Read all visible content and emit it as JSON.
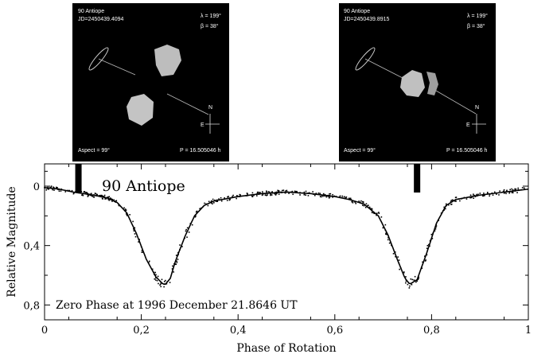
{
  "chart_data": {
    "type": "scatter",
    "title": "90 Antiope",
    "xlabel": "Phase of Rotation",
    "ylabel": "Relative Magnitude",
    "xlim": [
      0,
      1
    ],
    "ylim": [
      0.9,
      -0.15
    ],
    "y_inverted": true,
    "x_ticks": [
      0,
      0.2,
      0.4,
      0.6,
      0.8,
      1
    ],
    "x_tick_labels": [
      "0",
      "0,2",
      "0,4",
      "0,6",
      "0,8",
      "1"
    ],
    "y_ticks": [
      0,
      0.4,
      0.8
    ],
    "y_tick_labels": [
      "0",
      "0,4",
      "0,8"
    ],
    "annotation": "Zero Phase at 1996 December 21.8646 UT",
    "phase_markers": [
      0.07,
      0.77
    ],
    "series": [
      {
        "kind": "model-curve",
        "x": [
          0,
          0.03,
          0.06,
          0.1,
          0.13,
          0.15,
          0.17,
          0.19,
          0.21,
          0.23,
          0.245,
          0.25,
          0.26,
          0.27,
          0.29,
          0.31,
          0.33,
          0.35,
          0.4,
          0.45,
          0.5,
          0.55,
          0.6,
          0.63,
          0.66,
          0.69,
          0.71,
          0.73,
          0.745,
          0.755,
          0.77,
          0.79,
          0.81,
          0.83,
          0.85,
          0.9,
          0.95,
          1
        ],
        "y": [
          0.01,
          0.02,
          0.04,
          0.06,
          0.08,
          0.11,
          0.18,
          0.32,
          0.49,
          0.61,
          0.66,
          0.66,
          0.62,
          0.51,
          0.34,
          0.2,
          0.13,
          0.1,
          0.07,
          0.05,
          0.04,
          0.05,
          0.07,
          0.09,
          0.12,
          0.2,
          0.33,
          0.5,
          0.62,
          0.66,
          0.63,
          0.45,
          0.25,
          0.13,
          0.09,
          0.06,
          0.04,
          0.02
        ]
      }
    ],
    "observations_note": "dense dotted observations scattered closely around the model curve"
  },
  "panels": [
    {
      "name": "90 Antiope",
      "jd": "JD=2450439.4094",
      "lambda": "λ = 199°",
      "beta": "β =  38°",
      "aspect": "Aspect = 99°",
      "period": "P = 16.505046 h",
      "north": "N",
      "east": "E"
    },
    {
      "name": "90 Antiope",
      "jd": "JD=2450439.8915",
      "lambda": "λ = 199°",
      "beta": "β =  38°",
      "aspect": "Aspect = 99°",
      "period": "P = 16.505046 h",
      "north": "N",
      "east": "E"
    }
  ]
}
